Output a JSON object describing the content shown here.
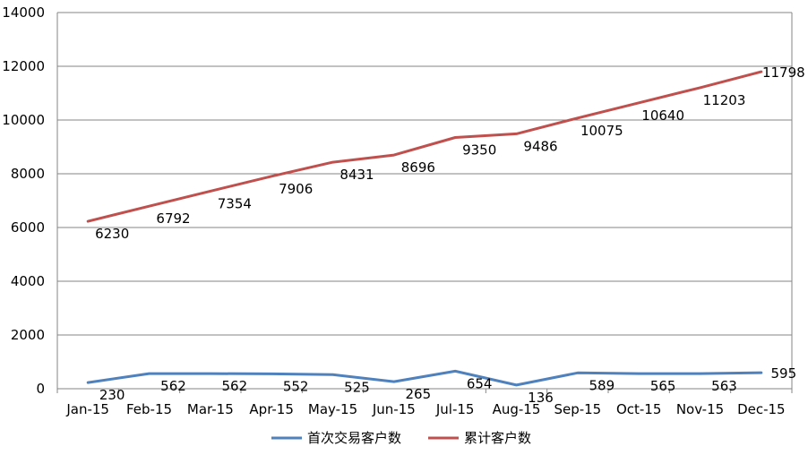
{
  "chart_data": {
    "type": "line",
    "title": "",
    "xlabel": "",
    "ylabel": "",
    "categories": [
      "Jan-15",
      "Feb-15",
      "Mar-15",
      "Apr-15",
      "May-15",
      "Jun-15",
      "Jul-15",
      "Aug-15",
      "Sep-15",
      "Oct-15",
      "Nov-15",
      "Dec-15"
    ],
    "ylim": [
      0,
      14000
    ],
    "yticks": [
      0,
      2000,
      4000,
      6000,
      8000,
      10000,
      12000,
      14000
    ],
    "grid": true,
    "legend_position": "bottom",
    "series": [
      {
        "name": "首次交易客户数",
        "color": "#4f81bd",
        "values": [
          230,
          562,
          562,
          552,
          525,
          265,
          654,
          136,
          589,
          565,
          563,
          595
        ]
      },
      {
        "name": "累计客户数",
        "color": "#c0504d",
        "values": [
          6230,
          6792,
          7354,
          7906,
          8431,
          8696,
          9350,
          9486,
          10075,
          10640,
          11203,
          11798
        ]
      }
    ]
  }
}
